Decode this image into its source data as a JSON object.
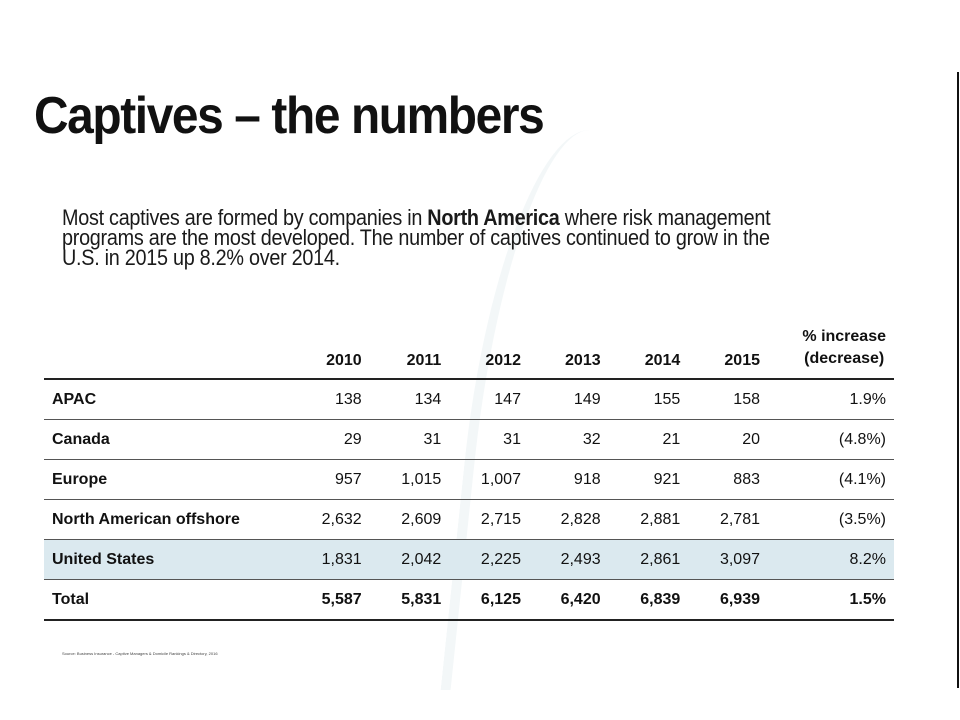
{
  "slide": {
    "title": "Captives – the numbers",
    "intro_pre": "Most captives are formed by companies in ",
    "intro_bold": "North America",
    "intro_post": " where risk management programs are the most developed. The number of captives continued to grow in the U.S. in 2015 up 8.2%  over 2014.",
    "source": "Source: Business Insurance - Captive Managers & Domicile Rankings & Directory, 2016"
  },
  "table": {
    "header_blank": "",
    "years": [
      "2010",
      "2011",
      "2012",
      "2013",
      "2014",
      "2015"
    ],
    "pct_header_line1": "% increase",
    "pct_header_line2": "(decrease)",
    "rows": [
      {
        "label": "APAC",
        "values": [
          "138",
          "134",
          "147",
          "149",
          "155",
          "158"
        ],
        "pct": "1.9%"
      },
      {
        "label": "Canada",
        "values": [
          "29",
          "31",
          "31",
          "32",
          "21",
          "20"
        ],
        "pct": "(4.8%)"
      },
      {
        "label": "Europe",
        "values": [
          "957",
          "1,015",
          "1,007",
          "918",
          "921",
          "883"
        ],
        "pct": "(4.1%)"
      },
      {
        "label": "North American offshore",
        "values": [
          "2,632",
          "2,609",
          "2,715",
          "2,828",
          "2,881",
          "2,781"
        ],
        "pct": "(3.5%)"
      },
      {
        "label": "United States",
        "values": [
          "1,831",
          "2,042",
          "2,225",
          "2,493",
          "2,861",
          "3,097"
        ],
        "pct": "8.2%",
        "highlight": true
      },
      {
        "label": "Total",
        "values": [
          "5,587",
          "5,831",
          "6,125",
          "6,420",
          "6,839",
          "6,939"
        ],
        "pct": "1.5%",
        "total": true
      }
    ]
  },
  "colors": {
    "highlight_row": "#dbe9ef",
    "text": "#111111"
  }
}
